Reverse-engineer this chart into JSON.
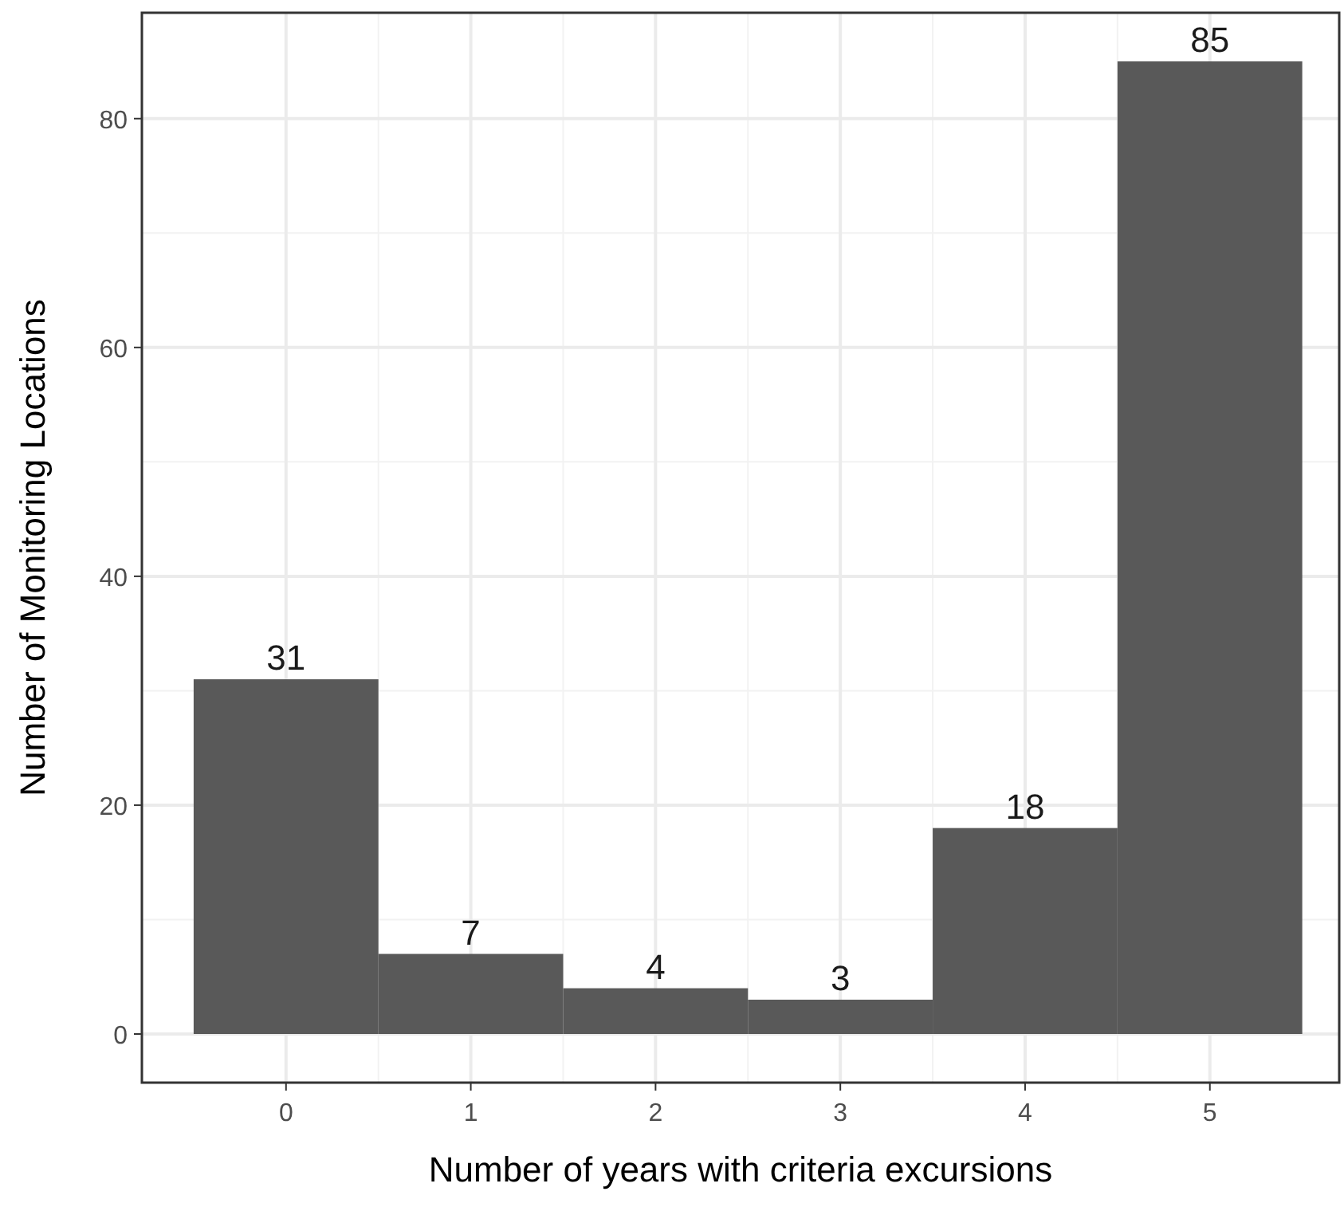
{
  "chart_data": {
    "type": "bar",
    "xlabel": "Number of years with criteria excursions",
    "ylabel": "Number of Monitoring Locations",
    "x": [
      0,
      1,
      2,
      3,
      4,
      5
    ],
    "values": [
      31,
      7,
      4,
      3,
      18,
      85
    ],
    "color": "#595959",
    "xlim": [
      -0.78,
      5.7
    ],
    "xticks": [
      0,
      1,
      2,
      3,
      4,
      5
    ],
    "ylim": [
      -4.25,
      89.25
    ],
    "yticks": [
      0,
      20,
      40,
      60,
      80
    ],
    "grid": true,
    "data_labels": true
  }
}
